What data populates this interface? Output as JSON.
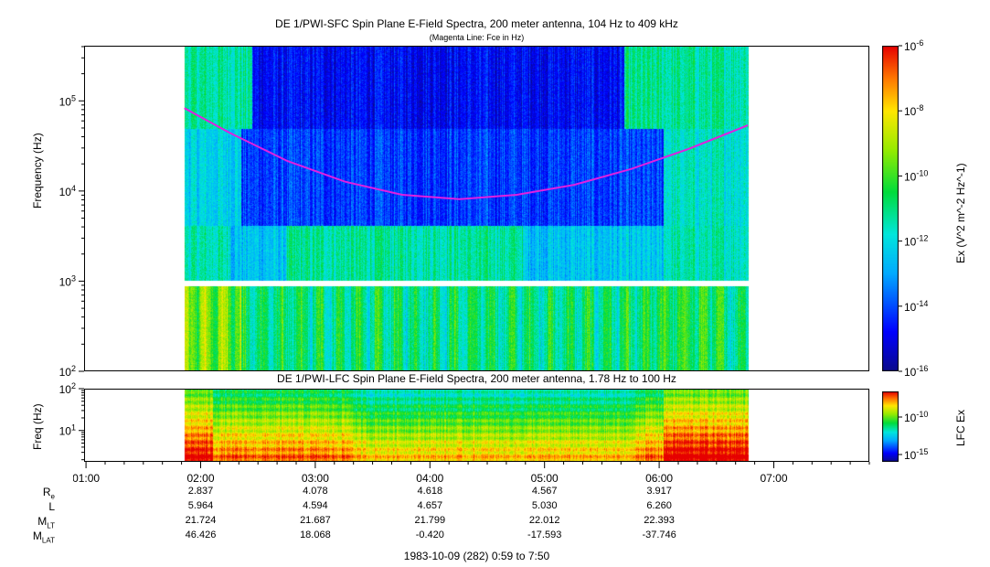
{
  "titles": {
    "sfc_title": "DE 1/PWI-SFC  Spin Plane E-Field Spectra, 200 meter antenna, 104 Hz to 409 kHz",
    "sfc_subtitle": "(Magenta Line: Fce in Hz)",
    "lfc_title": "DE 1/PWI-LFC  Spin Plane E-Field Spectra, 200 meter antenna, 1.78 Hz to 100 Hz",
    "date_range": "1983-10-09 (282) 0:59 to 7:50"
  },
  "colors": {
    "fce_line": "#e020e0",
    "background": "#ffffff"
  },
  "chart_data": [
    {
      "type": "heatmap",
      "name": "SFC spectrogram",
      "ylabel": "Frequency (Hz)",
      "y_scale": "log",
      "ylim": [
        100,
        409000
      ],
      "y_ticks": [
        "10^2",
        "10^3",
        "10^4",
        "10^5"
      ],
      "x_range_utc": [
        "00:59",
        "07:50"
      ],
      "data_coverage_utc": [
        "01:51",
        "06:46"
      ],
      "data_gap_hz": [
        900,
        1050
      ],
      "colorbar": {
        "label": "Ex (V^2 m^-2 Hz^-1)",
        "scale": "log",
        "range": [
          1e-16,
          1e-06
        ],
        "ticks": [
          "10^-16",
          "10^-14",
          "10^-12",
          "10^-10",
          "10^-8",
          "10^-6"
        ]
      },
      "fce_line": {
        "label": "Fce in Hz",
        "points": [
          {
            "t": "01:51",
            "f": 85000
          },
          {
            "t": "02:15",
            "f": 45000
          },
          {
            "t": "02:45",
            "f": 22000
          },
          {
            "t": "03:15",
            "f": 13000
          },
          {
            "t": "03:45",
            "f": 9300
          },
          {
            "t": "04:15",
            "f": 8300
          },
          {
            "t": "04:45",
            "f": 9300
          },
          {
            "t": "05:15",
            "f": 12000
          },
          {
            "t": "05:45",
            "f": 18000
          },
          {
            "t": "06:15",
            "f": 30000
          },
          {
            "t": "06:46",
            "f": 55000
          }
        ]
      }
    },
    {
      "type": "heatmap",
      "name": "LFC spectrogram",
      "ylabel": "Freq (Hz)",
      "y_scale": "log",
      "ylim": [
        1.78,
        100
      ],
      "y_ticks": [
        "10^1",
        "10^2"
      ],
      "data_coverage_utc": [
        "01:51",
        "06:46"
      ],
      "colorbar": {
        "label": "LFC Ex",
        "scale": "log",
        "ticks": [
          "10^-10",
          "10^-15"
        ]
      }
    }
  ],
  "time_axis": {
    "ticks": [
      "01:00",
      "02:00",
      "03:00",
      "04:00",
      "05:00",
      "06:00",
      "07:00"
    ]
  },
  "ephemeris": {
    "rows": [
      {
        "label": "R",
        "sub": "e",
        "values": [
          "2.837",
          "4.078",
          "4.618",
          "4.567",
          "3.917"
        ]
      },
      {
        "label": "L",
        "sub": "",
        "values": [
          "5.964",
          "4.594",
          "4.657",
          "5.030",
          "6.260"
        ]
      },
      {
        "label": "M",
        "sub": "LT",
        "values": [
          "21.724",
          "21.687",
          "21.799",
          "22.012",
          "22.393"
        ]
      },
      {
        "label": "M",
        "sub": "LAT",
        "values": [
          "46.426",
          "18.068",
          "-0.420",
          "-17.593",
          "-37.746"
        ]
      }
    ]
  }
}
